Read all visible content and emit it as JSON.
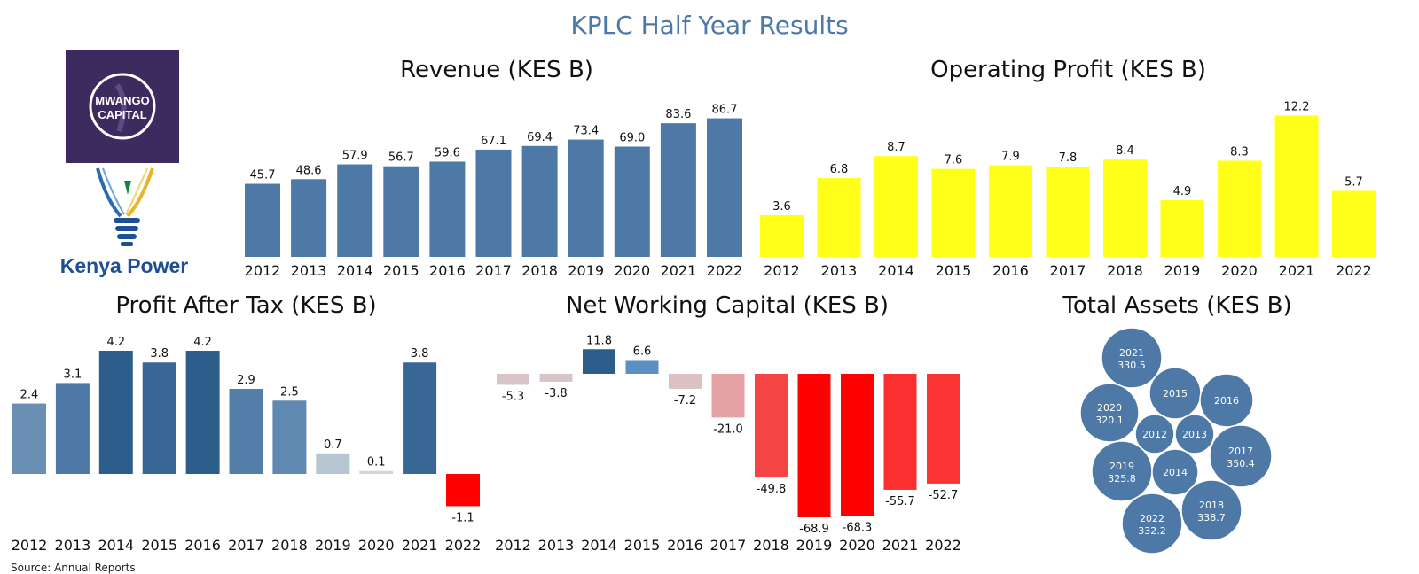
{
  "title": "KPLC Half Year Results",
  "source": "Source: Annual Reports",
  "logos": {
    "mwango": [
      "MWANGO",
      "CAPITAL"
    ],
    "kenya_power": "Kenya Power"
  },
  "colors": {
    "blue": "#4e79a7",
    "yellow": "#ffff1a",
    "red": "#ff0000",
    "pink": "#d9c5c7",
    "title": "#4e79a7"
  },
  "chart_data": [
    {
      "id": "revenue",
      "type": "bar",
      "title": "Revenue (KES B)",
      "categories": [
        "2012",
        "2013",
        "2014",
        "2015",
        "2016",
        "2017",
        "2018",
        "2019",
        "2020",
        "2021",
        "2022"
      ],
      "values": [
        45.7,
        48.6,
        57.9,
        56.7,
        59.6,
        67.1,
        69.4,
        73.4,
        69.0,
        83.6,
        86.7
      ],
      "labels": [
        "45.7",
        "48.6",
        "57.9",
        "56.7",
        "59.6",
        "67.1",
        "69.4",
        "73.4",
        "69.0",
        "83.6",
        "86.7"
      ],
      "colors": [
        "#4e79a7",
        "#4e79a7",
        "#4e79a7",
        "#4e79a7",
        "#4e79a7",
        "#4e79a7",
        "#4e79a7",
        "#4e79a7",
        "#4e79a7",
        "#4e79a7",
        "#4e79a7"
      ],
      "ylim": [
        0,
        92
      ]
    },
    {
      "id": "operating",
      "type": "bar",
      "title": "Operating Profit (KES B)",
      "categories": [
        "2012",
        "2013",
        "2014",
        "2015",
        "2016",
        "2017",
        "2018",
        "2019",
        "2020",
        "2021",
        "2022"
      ],
      "values": [
        3.6,
        6.8,
        8.7,
        7.6,
        7.9,
        7.8,
        8.4,
        4.9,
        8.3,
        12.2,
        5.7
      ],
      "labels": [
        "3.6",
        "6.8",
        "8.7",
        "7.6",
        "7.9",
        "7.8",
        "8.4",
        "4.9",
        "8.3",
        "12.2",
        "5.7"
      ],
      "colors": [
        "#ffff1a",
        "#ffff1a",
        "#ffff1a",
        "#ffff1a",
        "#ffff1a",
        "#ffff1a",
        "#ffff1a",
        "#ffff1a",
        "#ffff1a",
        "#ffff1a",
        "#ffff1a"
      ],
      "ylim": [
        0,
        13
      ]
    },
    {
      "id": "pat",
      "type": "bar",
      "title": "Profit After Tax (KES B)",
      "categories": [
        "2012",
        "2013",
        "2014",
        "2015",
        "2016",
        "2017",
        "2018",
        "2019",
        "2020",
        "2021",
        "2022"
      ],
      "values": [
        2.4,
        3.1,
        4.2,
        3.8,
        4.2,
        2.9,
        2.5,
        0.7,
        0.1,
        3.8,
        -1.1
      ],
      "labels": [
        "2.4",
        "3.1",
        "4.2",
        "3.8",
        "4.2",
        "2.9",
        "2.5",
        "0.7",
        "0.1",
        "3.8",
        "-1.1"
      ],
      "colors": [
        "#6b8fb3",
        "#4e79a7",
        "#2d5d8b",
        "#386795",
        "#2d5d8b",
        "#527ea9",
        "#5f89b0",
        "#b7c4d1",
        "#d3d6da",
        "#386795",
        "#ff0000"
      ],
      "ylim": [
        -1.9,
        4.2
      ]
    },
    {
      "id": "nwc",
      "type": "bar",
      "title": "Net Working Capital (KES B)",
      "categories": [
        "2012",
        "2013",
        "2014",
        "2015",
        "2016",
        "2017",
        "2018",
        "2019",
        "2020",
        "2021",
        "2022"
      ],
      "values": [
        -5.3,
        -3.8,
        11.8,
        6.6,
        -7.2,
        -21.0,
        -49.8,
        -68.9,
        -68.3,
        -55.7,
        -52.7
      ],
      "labels": [
        "-5.3",
        "-3.8",
        "11.8",
        "6.6",
        "-7.2",
        "-21.0",
        "-49.8",
        "-68.9",
        "-68.3",
        "-55.7",
        "-52.7"
      ],
      "colors": [
        "#d9c5c7",
        "#d9c5c7",
        "#2d5d8b",
        "#5b8fc6",
        "#dcc1c4",
        "#e4a2a4",
        "#f44444",
        "#ff0000",
        "#ff0000",
        "#fb2f2f",
        "#fb3434"
      ],
      "ylim": [
        -68.9,
        11.8
      ]
    },
    {
      "id": "assets",
      "type": "bubble",
      "title": "Total Assets (KES B)",
      "bubbles": [
        {
          "year": "2021",
          "value": 330.5,
          "label": "330.5"
        },
        {
          "year": "2015",
          "value": null,
          "label": ""
        },
        {
          "year": "2016",
          "value": null,
          "label": ""
        },
        {
          "year": "2020",
          "value": 320.1,
          "label": "320.1"
        },
        {
          "year": "2012",
          "value": null,
          "label": ""
        },
        {
          "year": "2013",
          "value": null,
          "label": ""
        },
        {
          "year": "2017",
          "value": 350.4,
          "label": "350.4"
        },
        {
          "year": "2019",
          "value": 325.8,
          "label": "325.8"
        },
        {
          "year": "2014",
          "value": null,
          "label": ""
        },
        {
          "year": "2022",
          "value": 332.2,
          "label": "332.2"
        },
        {
          "year": "2018",
          "value": 338.7,
          "label": "338.7"
        }
      ],
      "color": "#4e79a7"
    }
  ]
}
